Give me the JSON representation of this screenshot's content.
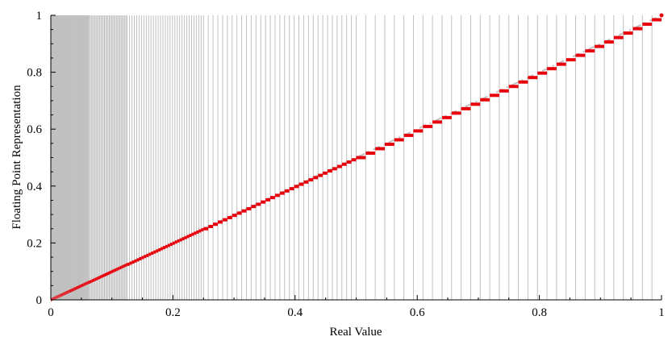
{
  "chart_data": {
    "type": "line",
    "title": "",
    "xlabel": "Real Value",
    "ylabel": "Floating Point Representation",
    "xlim": [
      0,
      1
    ],
    "ylim": [
      0,
      1
    ],
    "xticks": [
      "0",
      "0.2",
      "0.4",
      "0.6",
      "0.8",
      "1"
    ],
    "yticks": [
      "0",
      "0.2",
      "0.4",
      "0.6",
      "0.8",
      "1"
    ],
    "grid": "vertical lines at each representable floating-point value",
    "colors": {
      "steps": "#e8000b",
      "identity": "#c0c0c0",
      "grid": "#c0c0c0"
    },
    "series": [
      {
        "style": "step",
        "mantissa_bits": 5,
        "levels_per_binade": 32,
        "binade_boundaries": [
          1,
          0.5,
          0.25,
          0.125,
          0.0625,
          0.03125
        ],
        "color": "#e8000b"
      },
      {
        "style": "dash-dot",
        "x": [
          0,
          1
        ],
        "y": [
          0,
          1
        ],
        "color": "#c0c0c0"
      }
    ]
  }
}
